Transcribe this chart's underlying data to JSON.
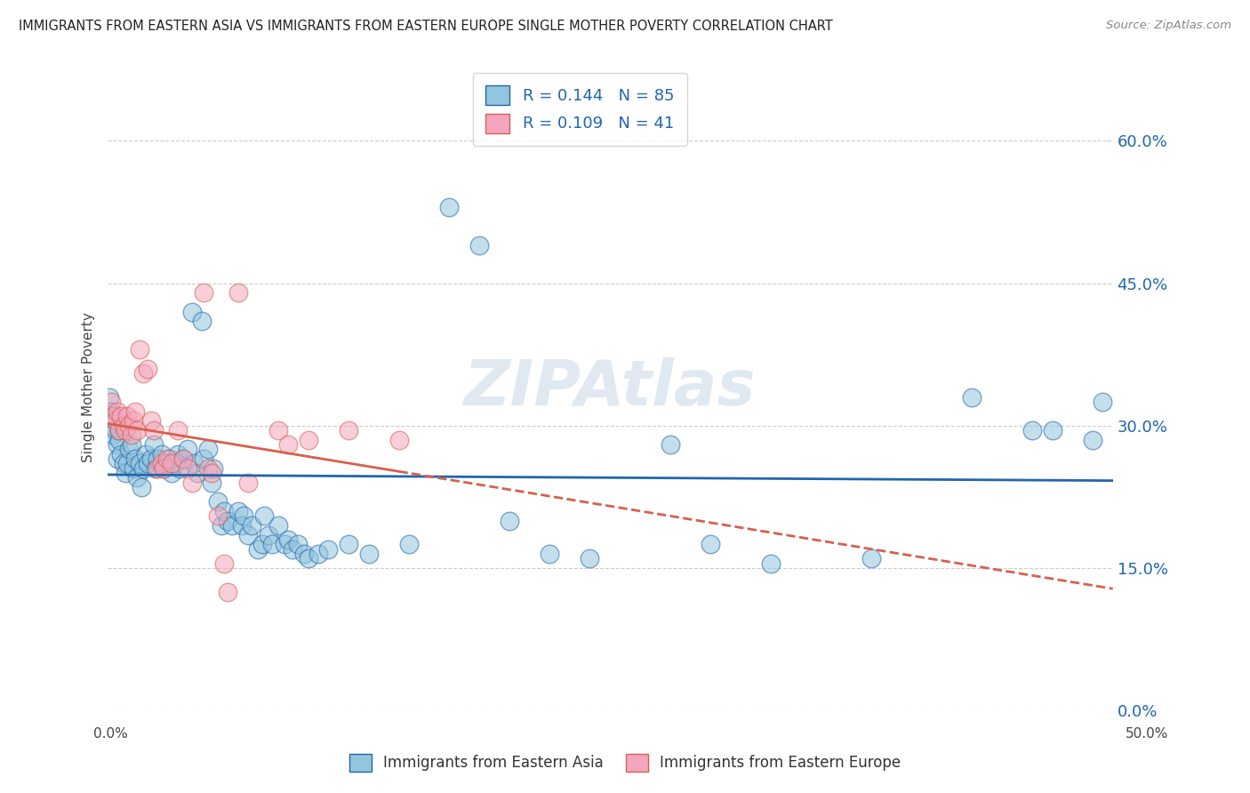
{
  "title": "IMMIGRANTS FROM EASTERN ASIA VS IMMIGRANTS FROM EASTERN EUROPE SINGLE MOTHER POVERTY CORRELATION CHART",
  "source": "Source: ZipAtlas.com",
  "ylabel": "Single Mother Poverty",
  "ytick_values": [
    0.0,
    0.15,
    0.3,
    0.45,
    0.6
  ],
  "xlim": [
    0.0,
    0.5
  ],
  "ylim": [
    0.04,
    0.68
  ],
  "watermark": "ZIPAtlas",
  "blue_color": "#92c5de",
  "pink_color": "#f4a6be",
  "blue_line_color": "#2166ac",
  "pink_line_color": "#d6604d",
  "blue_scatter": [
    [
      0.001,
      0.33
    ],
    [
      0.002,
      0.315
    ],
    [
      0.002,
      0.3
    ],
    [
      0.003,
      0.29
    ],
    [
      0.003,
      0.31
    ],
    [
      0.004,
      0.295
    ],
    [
      0.005,
      0.28
    ],
    [
      0.005,
      0.265
    ],
    [
      0.006,
      0.285
    ],
    [
      0.006,
      0.295
    ],
    [
      0.007,
      0.27
    ],
    [
      0.008,
      0.26
    ],
    [
      0.009,
      0.25
    ],
    [
      0.01,
      0.26
    ],
    [
      0.011,
      0.275
    ],
    [
      0.012,
      0.28
    ],
    [
      0.013,
      0.255
    ],
    [
      0.014,
      0.265
    ],
    [
      0.015,
      0.245
    ],
    [
      0.016,
      0.26
    ],
    [
      0.017,
      0.235
    ],
    [
      0.018,
      0.255
    ],
    [
      0.019,
      0.27
    ],
    [
      0.02,
      0.26
    ],
    [
      0.022,
      0.265
    ],
    [
      0.023,
      0.28
    ],
    [
      0.024,
      0.255
    ],
    [
      0.025,
      0.265
    ],
    [
      0.027,
      0.27
    ],
    [
      0.028,
      0.255
    ],
    [
      0.03,
      0.26
    ],
    [
      0.031,
      0.265
    ],
    [
      0.032,
      0.25
    ],
    [
      0.034,
      0.26
    ],
    [
      0.035,
      0.27
    ],
    [
      0.036,
      0.255
    ],
    [
      0.038,
      0.265
    ],
    [
      0.04,
      0.275
    ],
    [
      0.042,
      0.42
    ],
    [
      0.043,
      0.26
    ],
    [
      0.045,
      0.25
    ],
    [
      0.047,
      0.41
    ],
    [
      0.048,
      0.265
    ],
    [
      0.05,
      0.275
    ],
    [
      0.052,
      0.24
    ],
    [
      0.053,
      0.255
    ],
    [
      0.055,
      0.22
    ],
    [
      0.057,
      0.195
    ],
    [
      0.058,
      0.21
    ],
    [
      0.06,
      0.2
    ],
    [
      0.062,
      0.195
    ],
    [
      0.065,
      0.21
    ],
    [
      0.067,
      0.195
    ],
    [
      0.068,
      0.205
    ],
    [
      0.07,
      0.185
    ],
    [
      0.072,
      0.195
    ],
    [
      0.075,
      0.17
    ],
    [
      0.077,
      0.175
    ],
    [
      0.078,
      0.205
    ],
    [
      0.08,
      0.185
    ],
    [
      0.082,
      0.175
    ],
    [
      0.085,
      0.195
    ],
    [
      0.088,
      0.175
    ],
    [
      0.09,
      0.18
    ],
    [
      0.092,
      0.17
    ],
    [
      0.095,
      0.175
    ],
    [
      0.098,
      0.165
    ],
    [
      0.1,
      0.16
    ],
    [
      0.105,
      0.165
    ],
    [
      0.11,
      0.17
    ],
    [
      0.12,
      0.175
    ],
    [
      0.13,
      0.165
    ],
    [
      0.15,
      0.175
    ],
    [
      0.17,
      0.53
    ],
    [
      0.185,
      0.49
    ],
    [
      0.2,
      0.2
    ],
    [
      0.22,
      0.165
    ],
    [
      0.24,
      0.16
    ],
    [
      0.28,
      0.28
    ],
    [
      0.3,
      0.175
    ],
    [
      0.33,
      0.155
    ],
    [
      0.38,
      0.16
    ],
    [
      0.43,
      0.33
    ],
    [
      0.46,
      0.295
    ],
    [
      0.47,
      0.295
    ],
    [
      0.49,
      0.285
    ],
    [
      0.495,
      0.325
    ]
  ],
  "pink_scatter": [
    [
      0.002,
      0.325
    ],
    [
      0.003,
      0.31
    ],
    [
      0.004,
      0.305
    ],
    [
      0.005,
      0.315
    ],
    [
      0.006,
      0.295
    ],
    [
      0.007,
      0.31
    ],
    [
      0.008,
      0.3
    ],
    [
      0.009,
      0.295
    ],
    [
      0.01,
      0.31
    ],
    [
      0.011,
      0.3
    ],
    [
      0.012,
      0.29
    ],
    [
      0.013,
      0.305
    ],
    [
      0.014,
      0.315
    ],
    [
      0.015,
      0.295
    ],
    [
      0.016,
      0.38
    ],
    [
      0.018,
      0.355
    ],
    [
      0.02,
      0.36
    ],
    [
      0.022,
      0.305
    ],
    [
      0.023,
      0.295
    ],
    [
      0.025,
      0.255
    ],
    [
      0.027,
      0.26
    ],
    [
      0.028,
      0.255
    ],
    [
      0.03,
      0.265
    ],
    [
      0.032,
      0.26
    ],
    [
      0.035,
      0.295
    ],
    [
      0.038,
      0.265
    ],
    [
      0.04,
      0.255
    ],
    [
      0.042,
      0.24
    ],
    [
      0.048,
      0.44
    ],
    [
      0.05,
      0.255
    ],
    [
      0.052,
      0.25
    ],
    [
      0.055,
      0.205
    ],
    [
      0.058,
      0.155
    ],
    [
      0.06,
      0.125
    ],
    [
      0.065,
      0.44
    ],
    [
      0.07,
      0.24
    ],
    [
      0.085,
      0.295
    ],
    [
      0.09,
      0.28
    ],
    [
      0.1,
      0.285
    ],
    [
      0.12,
      0.295
    ],
    [
      0.145,
      0.285
    ]
  ]
}
